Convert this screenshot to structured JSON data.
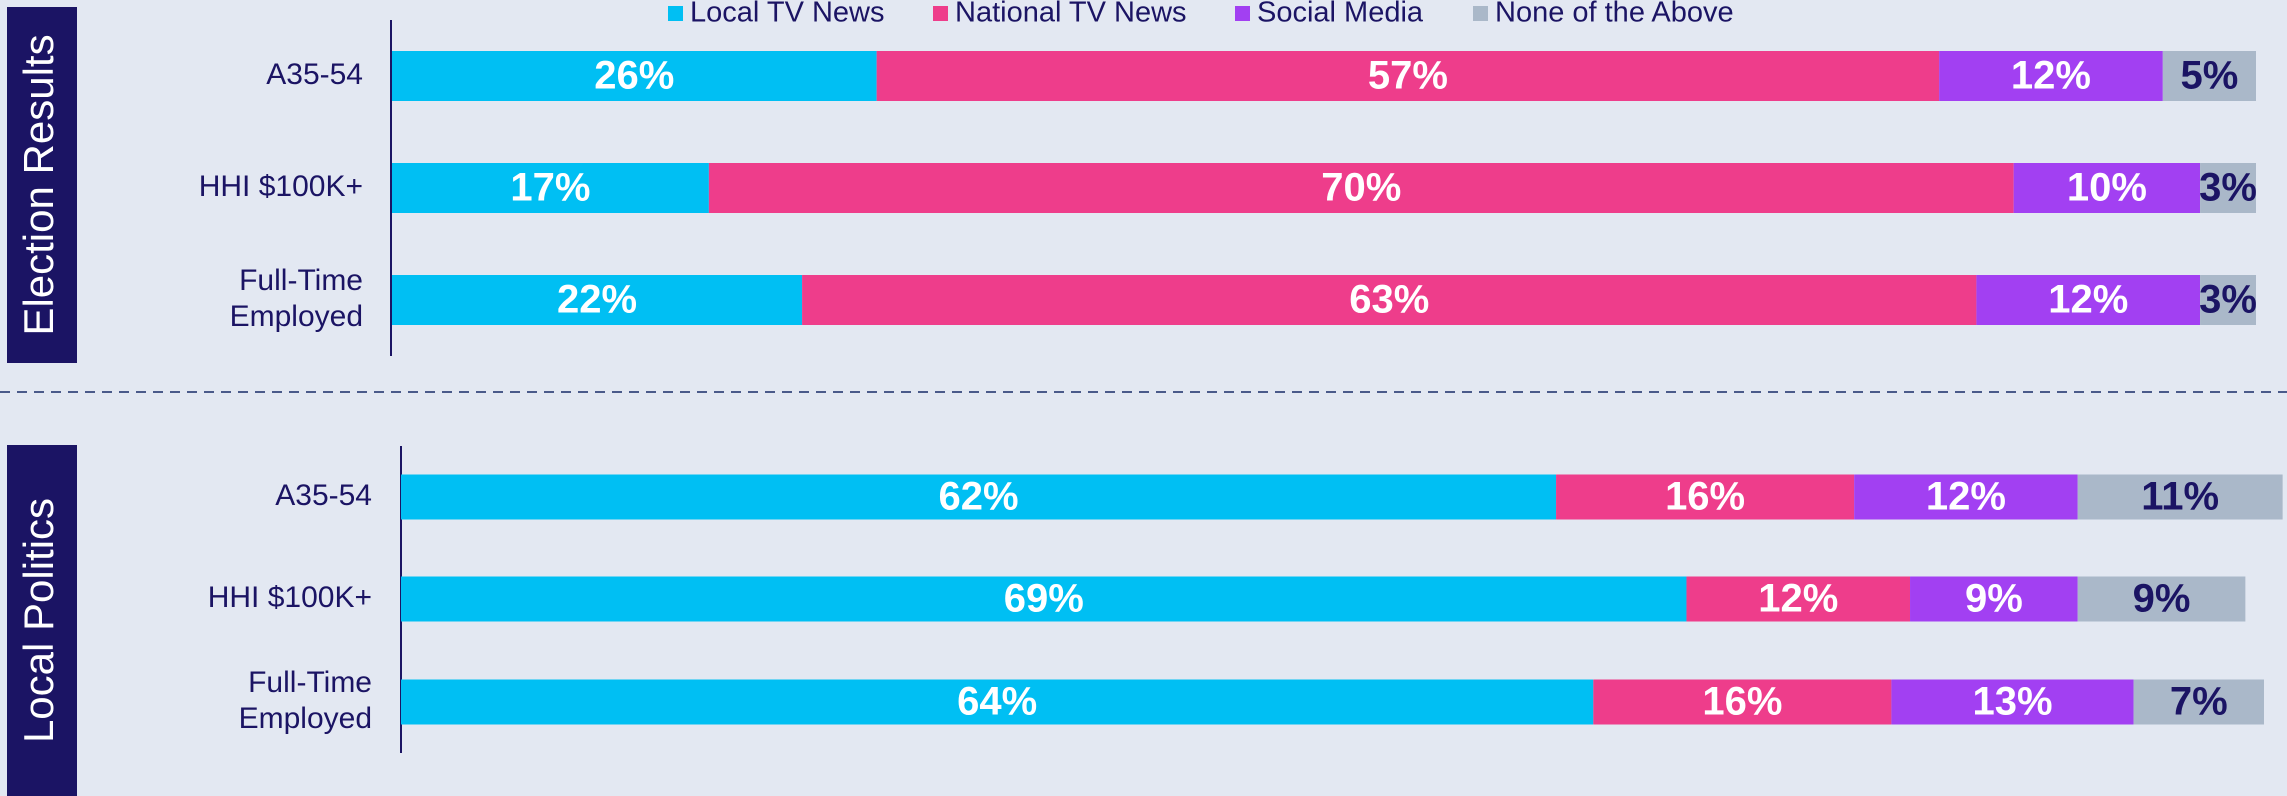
{
  "chart_data": [
    {
      "type": "bar",
      "orientation": "horizontal",
      "stacked": true,
      "title": "Election Results",
      "categories": [
        "A35-54",
        "HHI $100K+",
        "Full-Time\nEmployed"
      ],
      "xlim": [
        0,
        100
      ],
      "legend": "top",
      "series": [
        {
          "name": "Local TV News",
          "color": "#00bff3",
          "values": [
            26,
            17,
            22
          ],
          "value_labels": [
            "26%",
            "17%",
            "22%"
          ]
        },
        {
          "name": "National TV News",
          "color": "#ee3d8b",
          "values": [
            57,
            70,
            63
          ],
          "value_labels": [
            "57%",
            "70%",
            "63%"
          ]
        },
        {
          "name": "Social Media",
          "color": "#a240f2",
          "values": [
            12,
            10,
            12
          ],
          "value_labels": [
            "12%",
            "10%",
            "12%"
          ]
        },
        {
          "name": "None of the Above",
          "color": "#aab8c9",
          "values": [
            5,
            3,
            3
          ],
          "value_labels": [
            "5%",
            "3%",
            "3%"
          ]
        }
      ]
    },
    {
      "type": "bar",
      "orientation": "horizontal",
      "stacked": true,
      "title": "Local Politics",
      "categories": [
        "A35-54",
        "HHI $100K+",
        "Full-Time\nEmployed"
      ],
      "xlim": [
        0,
        100
      ],
      "series": [
        {
          "name": "Local TV News",
          "color": "#00bff3",
          "values": [
            62,
            69,
            64
          ],
          "value_labels": [
            "62%",
            "69%",
            "64%"
          ]
        },
        {
          "name": "National TV News",
          "color": "#ee3d8b",
          "values": [
            16,
            12,
            16
          ],
          "value_labels": [
            "16%",
            "12%",
            "16%"
          ]
        },
        {
          "name": "Social Media",
          "color": "#a240f2",
          "values": [
            12,
            9,
            13
          ],
          "value_labels": [
            "12%",
            "9%",
            "13%"
          ]
        },
        {
          "name": "None of the Above",
          "color": "#aab8c9",
          "values": [
            11,
            9,
            7
          ],
          "value_labels": [
            "11%",
            "9%",
            "7%"
          ]
        }
      ]
    }
  ]
}
